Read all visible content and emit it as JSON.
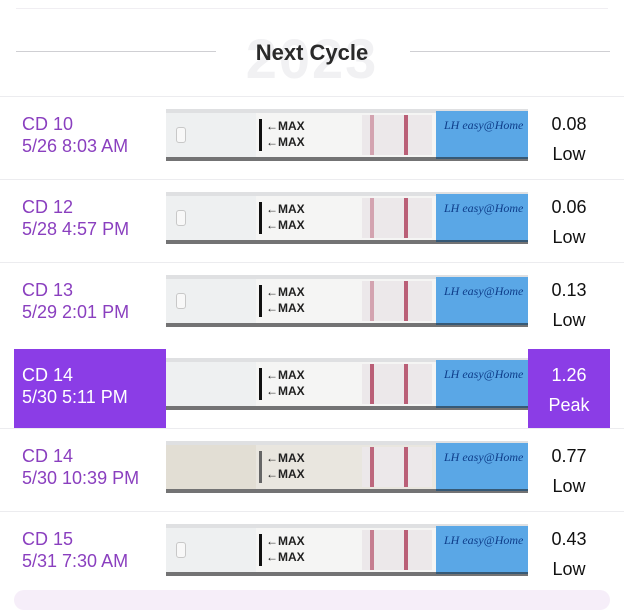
{
  "header": {
    "title": "Next Cycle",
    "watermark_year": "2023"
  },
  "accent_color": "#8b3de6",
  "strip_labels": {
    "max": "←MAX",
    "brand": "LH easy@Home"
  },
  "tests": [
    {
      "day": "CD 10",
      "datetime": "5/26 8:03 AM",
      "value": "0.08",
      "level": "Low"
    },
    {
      "day": "CD 12",
      "datetime": "5/28 4:57 PM",
      "value": "0.06",
      "level": "Low"
    },
    {
      "day": "CD 13",
      "datetime": "5/29 2:01 PM",
      "value": "0.13",
      "level": "Low"
    },
    {
      "day": "CD 14",
      "datetime": "5/30 5:11 PM",
      "value": "1.26",
      "level": "Peak",
      "selected": true
    },
    {
      "day": "CD 14",
      "datetime": "5/30 10:39 PM",
      "value": "0.77",
      "level": "Low"
    },
    {
      "day": "CD 15",
      "datetime": "5/31 7:30 AM",
      "value": "0.43",
      "level": "Low"
    }
  ]
}
